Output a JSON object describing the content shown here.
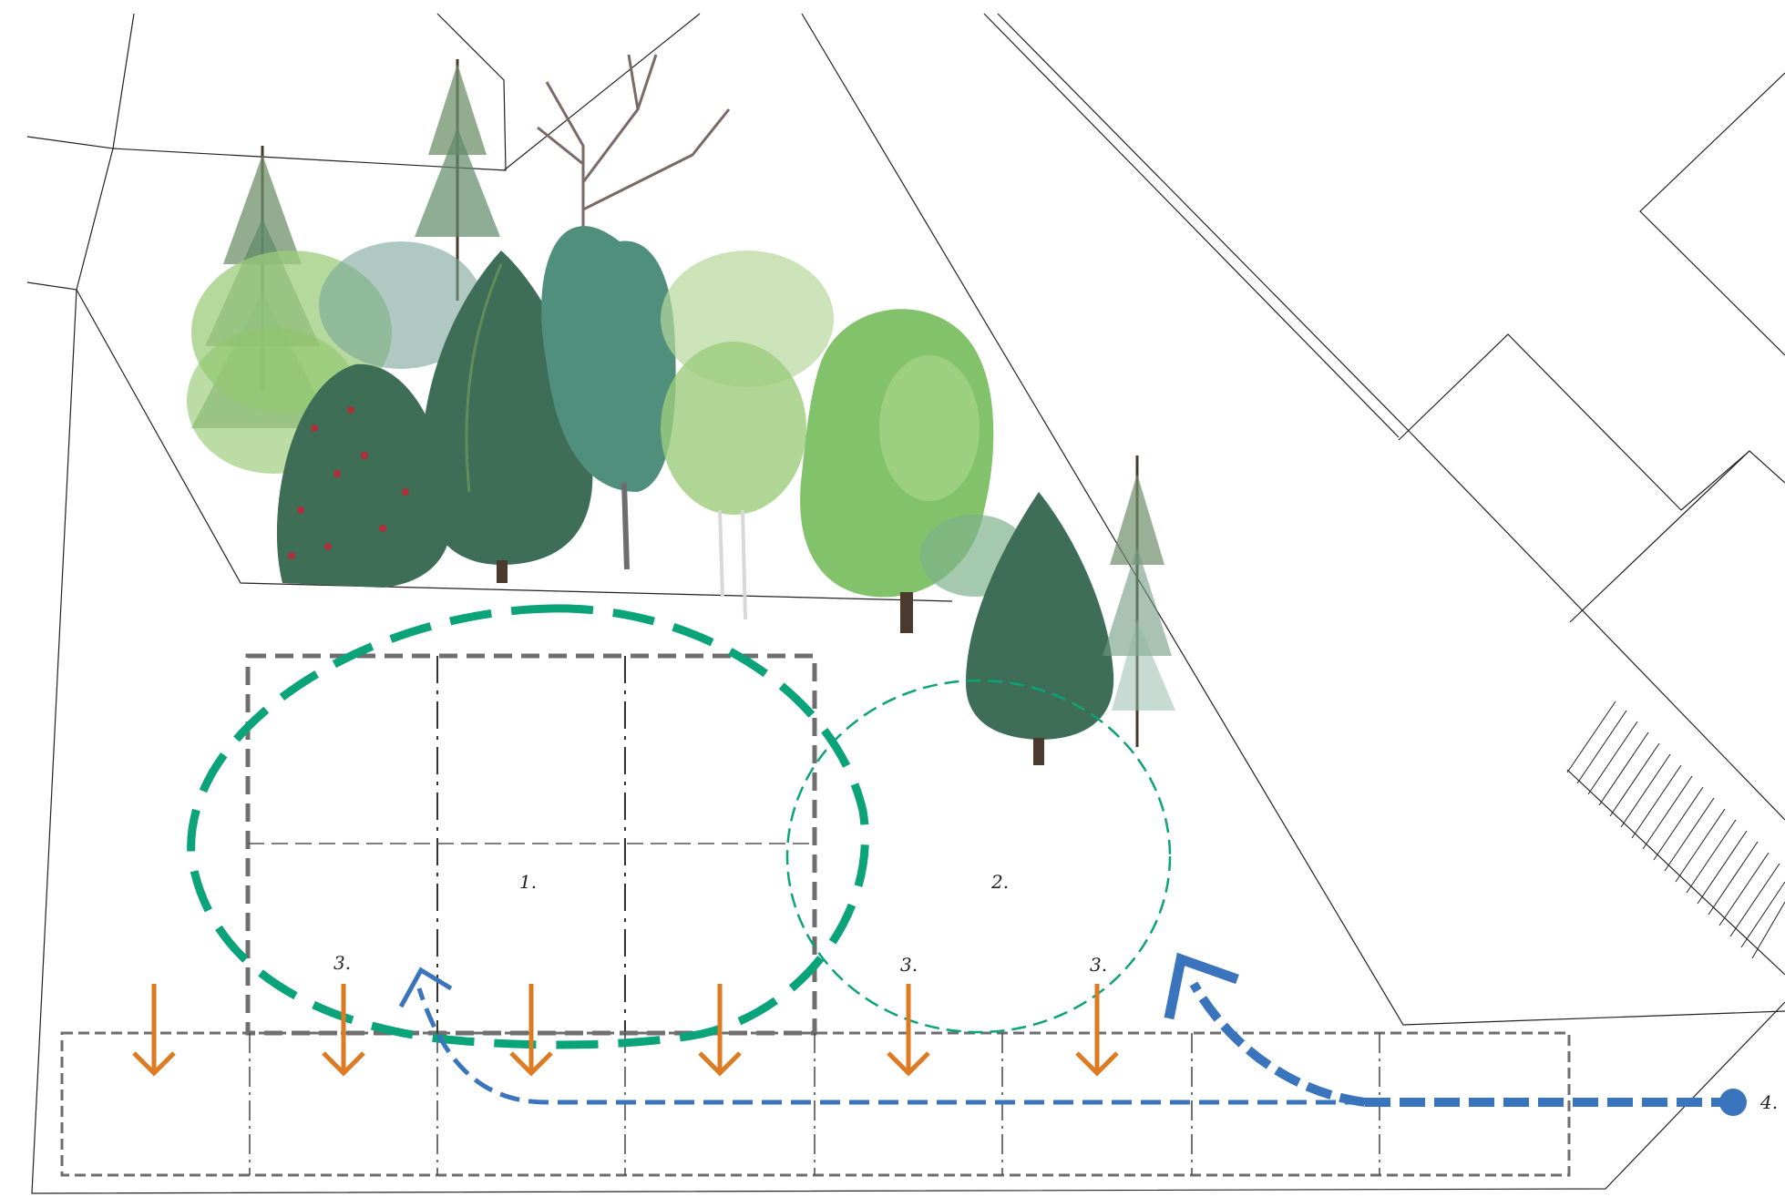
{
  "labels": {
    "zone1": "1.",
    "zone2": "2.",
    "zone3": "3.",
    "entry": "4."
  },
  "colors": {
    "line": "#222222",
    "grid": "#6e6e6e",
    "green": "#0aa37a",
    "orange": "#de7a21",
    "blue": "#3a74bd",
    "tree_light": "#8fc46a",
    "tree_mid": "#5c9a5a",
    "tree_dark": "#3e6e55",
    "tree_teal": "#4f8f7c",
    "berry": "#b0303a",
    "trunk": "#4a3a2e"
  },
  "icons": {
    "flow_arrow": "arrow-down-icon",
    "entry_marker": "dot-icon"
  }
}
